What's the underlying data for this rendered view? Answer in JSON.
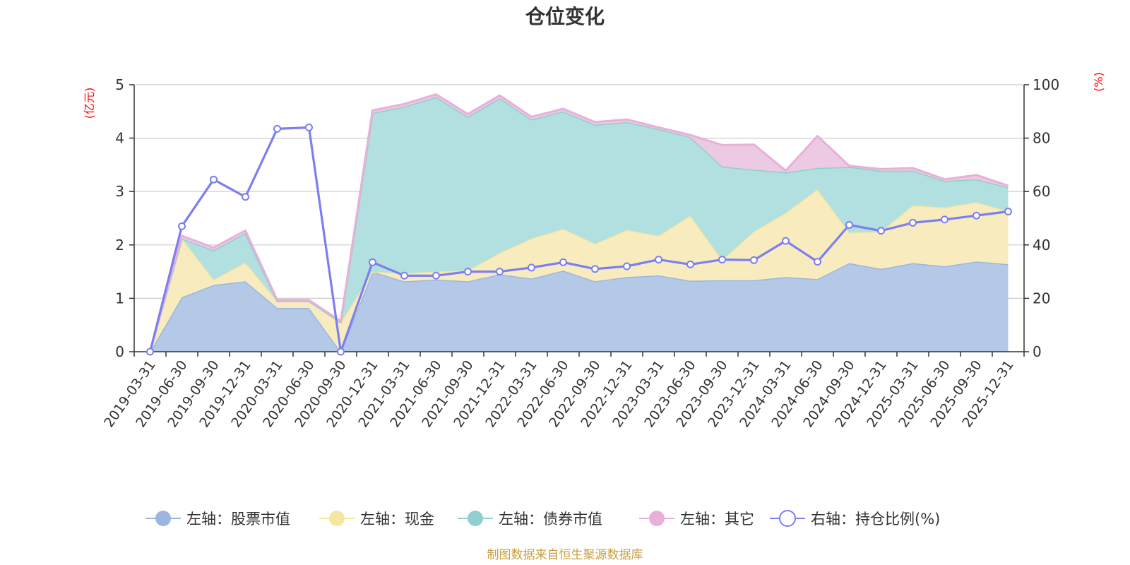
{
  "chart_data": {
    "type": "area",
    "title": "仓位变化",
    "left_axis": {
      "unit": "(亿元)",
      "ylim": [
        0,
        5
      ],
      "ticks": [
        0,
        1,
        2,
        3,
        4,
        5
      ]
    },
    "right_axis": {
      "unit": "(%)",
      "ylim": [
        0,
        100
      ],
      "ticks": [
        0,
        20,
        40,
        60,
        80,
        100
      ]
    },
    "categories": [
      "2019-03-31",
      "2019-06-30",
      "2019-09-30",
      "2019-12-31",
      "2020-03-31",
      "2020-06-30",
      "2020-09-30",
      "2020-12-31",
      "2021-03-31",
      "2021-06-30",
      "2021-09-30",
      "2021-12-31",
      "2022-03-31",
      "2022-06-30",
      "2022-09-30",
      "2022-12-31",
      "2023-03-31",
      "2023-06-30",
      "2023-09-30",
      "2023-12-31",
      "2024-03-31",
      "2024-06-30",
      "2024-09-30",
      "2024-12-31",
      "2025-03-31",
      "2025-06-30",
      "2025-09-30",
      "2025-12-31"
    ],
    "series": [
      {
        "name": "左轴：股票市值",
        "axis": "left",
        "type": "area",
        "color": "#9db6e0",
        "fill": "#b4c8e8",
        "values": [
          0,
          1.02,
          1.25,
          1.32,
          0.82,
          0.82,
          0,
          1.5,
          1.32,
          1.35,
          1.32,
          1.45,
          1.37,
          1.52,
          1.32,
          1.4,
          1.43,
          1.33,
          1.34,
          1.34,
          1.4,
          1.36,
          1.66,
          1.55,
          1.66,
          1.6,
          1.69,
          1.64
        ]
      },
      {
        "name": "左轴：现金",
        "axis": "left",
        "type": "area",
        "color": "#f5e6a0",
        "fill": "#f8ecbf",
        "values": [
          0,
          1.1,
          0.1,
          0.35,
          0.13,
          0.13,
          0.55,
          0,
          0.15,
          0.15,
          0.2,
          0.4,
          0.75,
          0.78,
          0.7,
          0.88,
          0.74,
          1.22,
          0.38,
          0.91,
          1.2,
          1.68,
          0.57,
          0.7,
          1.08,
          1.1,
          1.11,
          0.99
        ]
      },
      {
        "name": "左轴：债券市值",
        "axis": "left",
        "type": "area",
        "color": "#8fcfcf",
        "fill": "#b2dfe0",
        "values": [
          0,
          0,
          0.55,
          0.55,
          0,
          0,
          0,
          2.97,
          3.12,
          3.27,
          2.88,
          2.9,
          2.23,
          2.2,
          2.23,
          2.02,
          2.0,
          1.47,
          1.75,
          1.16,
          0.76,
          0.4,
          1.23,
          1.14,
          0.65,
          0.5,
          0.43,
          0.45
        ]
      },
      {
        "name": "左轴：其它",
        "axis": "left",
        "type": "area",
        "color": "#e8b0d8",
        "fill": "#eccae3",
        "values": [
          0,
          0.05,
          0.05,
          0.05,
          0.02,
          0.02,
          0.02,
          0.05,
          0.05,
          0.05,
          0.05,
          0.05,
          0.05,
          0.05,
          0.05,
          0.05,
          0.03,
          0.04,
          0.4,
          0.47,
          0.03,
          0.6,
          0.02,
          0.03,
          0.05,
          0.03,
          0.08,
          0.03
        ]
      },
      {
        "name": "右轴：持仓比例(%)",
        "axis": "right",
        "type": "line",
        "color": "#7b7ff0",
        "values": [
          0,
          47,
          64.5,
          58,
          83.5,
          84,
          0,
          33.5,
          28.5,
          28.5,
          30,
          30,
          31.5,
          33.5,
          31,
          32,
          34.5,
          32.7,
          34.5,
          34.3,
          41.5,
          33.7,
          47.5,
          45.3,
          48.3,
          49.5,
          51,
          52.5
        ]
      }
    ]
  },
  "legend": [
    {
      "label": "左轴：股票市值",
      "kind": "dot",
      "color": "#9db6e0"
    },
    {
      "label": "左轴：现金",
      "kind": "dot",
      "color": "#f5e6a0"
    },
    {
      "label": "左轴：债券市值",
      "kind": "dot",
      "color": "#8fcfcf"
    },
    {
      "label": "左轴：其它",
      "kind": "dot",
      "color": "#e8b0d8"
    },
    {
      "label": "右轴：持仓比例(%)",
      "kind": "ring",
      "color": "#7b7ff0"
    }
  ],
  "source": "制图数据来自恒生聚源数据库"
}
